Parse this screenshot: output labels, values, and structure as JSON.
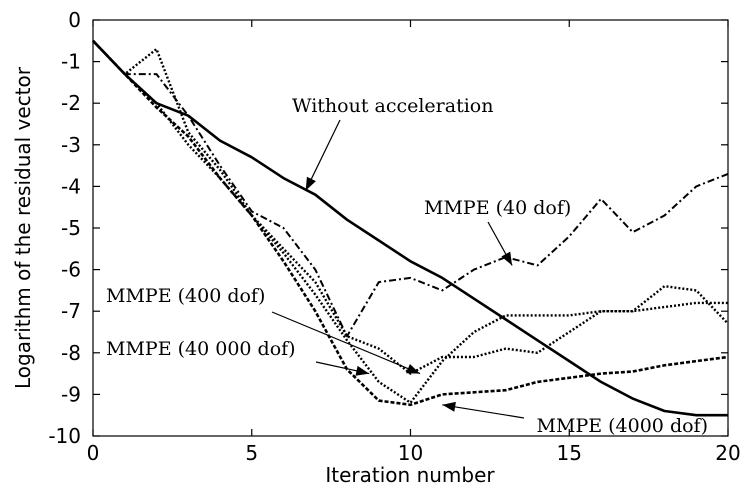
{
  "chart_data": {
    "type": "line",
    "title": "",
    "xlabel": "Iteration number",
    "ylabel": "Logarithm of the residual vector",
    "xlim": [
      0,
      20
    ],
    "ylim": [
      -10,
      0
    ],
    "xticks": [
      0,
      5,
      10,
      15,
      20
    ],
    "yticks": [
      0,
      -1,
      -2,
      -3,
      -4,
      -5,
      -6,
      -7,
      -8,
      -9,
      -10
    ],
    "grid": false,
    "legend": "none",
    "series": [
      {
        "name": "Without acceleration",
        "style": "solid",
        "color": "#000000",
        "x": [
          0,
          1,
          2,
          3,
          4,
          5,
          6,
          7,
          8,
          9,
          10,
          11,
          12,
          13,
          14,
          15,
          16,
          17,
          18,
          19,
          20
        ],
        "y": [
          -0.5,
          -1.3,
          -2.0,
          -2.3,
          -2.9,
          -3.3,
          -3.8,
          -4.2,
          -4.8,
          -5.3,
          -5.8,
          -6.2,
          -6.7,
          -7.2,
          -7.7,
          -8.2,
          -8.7,
          -9.1,
          -9.4,
          -9.5,
          -9.5
        ]
      },
      {
        "name": "MMPE (40 dof)",
        "style": "dashdot",
        "color": "#000000",
        "x": [
          0,
          1,
          2,
          3,
          4,
          5,
          6,
          7,
          8,
          9,
          10,
          11,
          12,
          13,
          14,
          15,
          16,
          17,
          18,
          19,
          20
        ],
        "y": [
          -0.5,
          -1.3,
          -1.3,
          -2.3,
          -3.5,
          -4.6,
          -5.0,
          -6.0,
          -7.6,
          -6.3,
          -6.2,
          -6.5,
          -6.0,
          -5.7,
          -5.9,
          -5.2,
          -4.3,
          -5.1,
          -4.7,
          -4.0,
          -3.7
        ]
      },
      {
        "name": "MMPE (400 dof)",
        "style": "dotted",
        "color": "#000000",
        "x": [
          0,
          1,
          2,
          3,
          4,
          5,
          6,
          7,
          8,
          9,
          10,
          11,
          12,
          13,
          14,
          15,
          16,
          17,
          18,
          19,
          20
        ],
        "y": [
          -0.5,
          -1.3,
          -0.7,
          -2.7,
          -3.6,
          -4.7,
          -5.5,
          -6.3,
          -7.6,
          -7.9,
          -8.5,
          -8.1,
          -8.1,
          -7.9,
          -8.0,
          -7.5,
          -7.0,
          -7.0,
          -6.4,
          -6.5,
          -7.3
        ]
      },
      {
        "name": "MMPE (4000 dof)",
        "style": "dotted",
        "color": "#000000",
        "x": [
          0,
          1,
          2,
          3,
          4,
          5,
          6,
          7,
          8,
          9,
          10,
          11,
          12,
          13,
          14,
          15,
          16,
          17,
          18,
          19,
          20
        ],
        "y": [
          -0.5,
          -1.3,
          -2.0,
          -3.0,
          -3.8,
          -4.7,
          -5.6,
          -6.6,
          -7.7,
          -8.7,
          -9.2,
          -8.2,
          -7.5,
          -7.1,
          -7.1,
          -7.1,
          -7.0,
          -7.0,
          -6.9,
          -6.8,
          -6.8
        ]
      },
      {
        "name": "MMPE (40 000 dof)",
        "style": "dashed",
        "color": "#000000",
        "x": [
          0,
          1,
          2,
          3,
          4,
          5,
          6,
          7,
          8,
          9,
          10,
          11,
          12,
          13,
          14,
          15,
          16,
          17,
          18,
          19,
          20
        ],
        "y": [
          -0.5,
          -1.3,
          -2.1,
          -2.8,
          -3.8,
          -4.7,
          -5.8,
          -7.0,
          -8.4,
          -9.15,
          -9.25,
          -9.0,
          -8.95,
          -8.9,
          -8.7,
          -8.6,
          -8.5,
          -8.45,
          -8.3,
          -8.2,
          -8.1
        ]
      }
    ],
    "annotations": [
      {
        "text": "Without acceleration",
        "series": "Without acceleration",
        "at": [
          6.7,
          -4.1
        ]
      },
      {
        "text": "MMPE (40 dof)",
        "series": "MMPE (40 dof)",
        "at": [
          13.2,
          -5.9
        ]
      },
      {
        "text": "MMPE (400 dof)",
        "series": "MMPE (400 dof)",
        "at": [
          10.3,
          -8.5
        ]
      },
      {
        "text": "MMPE (40 000 dof)",
        "series": "MMPE (40 000 dof)",
        "at": [
          8.7,
          -8.5
        ]
      },
      {
        "text": "MMPE (4000 dof)",
        "series": "MMPE (4000 dof)",
        "at": [
          11.0,
          -9.25
        ]
      }
    ]
  }
}
